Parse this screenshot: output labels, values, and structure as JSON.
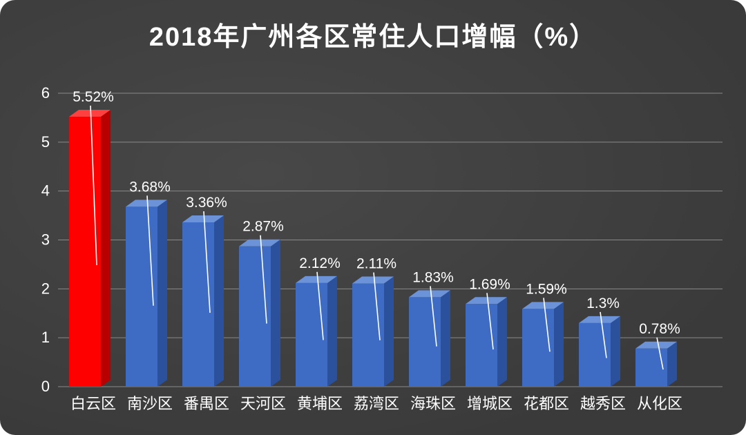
{
  "title": "2018年广州各区常住人口增幅（%）",
  "chart_data": {
    "type": "bar",
    "title": "2018年广州各区常住人口增幅（%）",
    "categories": [
      "白云区",
      "南沙区",
      "番禺区",
      "天河区",
      "黄埔区",
      "荔湾区",
      "海珠区",
      "增城区",
      "花都区",
      "越秀区",
      "从化区"
    ],
    "values": [
      5.52,
      3.68,
      3.36,
      2.87,
      2.12,
      2.11,
      1.83,
      1.69,
      1.59,
      1.3,
      0.78
    ],
    "value_labels": [
      "5.52%",
      "3.68%",
      "3.36%",
      "2.87%",
      "2.12%",
      "2.11%",
      "1.83%",
      "1.69%",
      "1.59%",
      "1.3%",
      "0.78%"
    ],
    "xlabel": "",
    "ylabel": "",
    "ylim": [
      0,
      6
    ],
    "yticks": [
      0,
      1,
      2,
      3,
      4,
      5,
      6
    ],
    "grid": true,
    "legend_position": "none",
    "style": "3d-column",
    "highlight_index": 0,
    "colors": {
      "background": "#3f3f3f",
      "text": "#ffffff",
      "gridline": "#8a8a8a",
      "bar_default_front": "#3e6cc4",
      "bar_default_top": "#6c93d8",
      "bar_default_side": "#2c519c",
      "bar_highlight_front": "#fe0000",
      "bar_highlight_top": "#ff4040",
      "bar_highlight_side": "#b80000",
      "leader_line": "#ffffff"
    }
  }
}
